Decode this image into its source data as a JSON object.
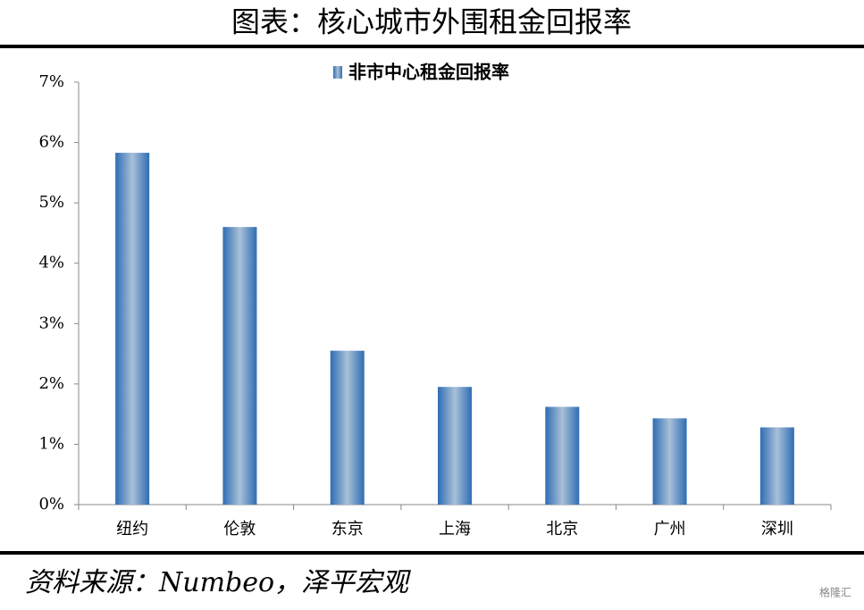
{
  "chart_data": {
    "type": "bar",
    "title": "图表：核心城市外围租金回报率",
    "series": [
      {
        "name": "非市中心租金回报率",
        "color": "#2f6db4",
        "values": [
          5.83,
          4.6,
          2.55,
          1.95,
          1.62,
          1.43,
          1.28
        ]
      }
    ],
    "categories": [
      "纽约",
      "伦敦",
      "东京",
      "上海",
      "北京",
      "广州",
      "深圳"
    ],
    "ylim": [
      0,
      7
    ],
    "yticks": [
      {
        "value": 0,
        "label": "0%"
      },
      {
        "value": 1,
        "label": "1%"
      },
      {
        "value": 2,
        "label": "2%"
      },
      {
        "value": 3,
        "label": "3%"
      },
      {
        "value": 4,
        "label": "4%"
      },
      {
        "value": 5,
        "label": "5%"
      },
      {
        "value": 6,
        "label": "6%"
      },
      {
        "value": 7,
        "label": "7%"
      }
    ],
    "grid": false,
    "source": "资料来源：Numbeo，泽平宏观",
    "watermark": "格隆汇"
  }
}
